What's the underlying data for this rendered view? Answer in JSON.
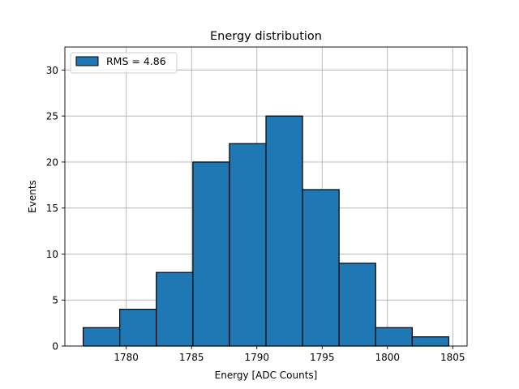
{
  "chart_data": {
    "type": "bar",
    "title": "Energy distribution",
    "xlabel": "Energy [ADC Counts]",
    "ylabel": "Events",
    "bin_edges": [
      1776.7,
      1779.5,
      1782.3,
      1785.1,
      1787.9,
      1790.7,
      1793.5,
      1796.3,
      1799.1,
      1801.9,
      1804.7
    ],
    "values": [
      2,
      4,
      8,
      20,
      22,
      25,
      17,
      9,
      2,
      1
    ],
    "xlim": [
      1775.3,
      1806.1
    ],
    "ylim": [
      0,
      32.5
    ],
    "xticks": [
      1780,
      1785,
      1790,
      1795,
      1800,
      1805
    ],
    "yticks": [
      0,
      5,
      10,
      15,
      20,
      25,
      30
    ],
    "grid": true,
    "bar_color": "#1f77b4",
    "edge_color": "#000000",
    "legend": {
      "placement": "top-left",
      "entries": [
        {
          "label": "RMS = 4.86",
          "color": "#1f77b4"
        }
      ]
    }
  }
}
